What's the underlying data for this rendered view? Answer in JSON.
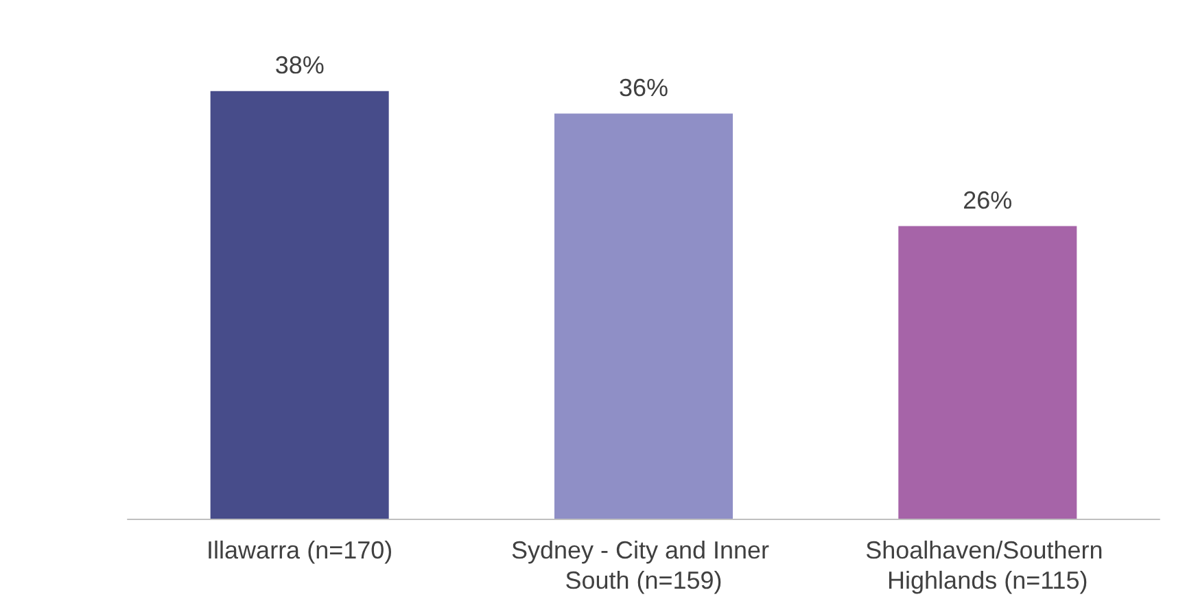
{
  "chart_data": {
    "type": "bar",
    "categories": [
      "Illawarra (n=170)",
      "Sydney - City and Inner South (n=159)",
      "Shoalhaven/Southern Highlands (n=115)"
    ],
    "values": [
      38,
      36,
      26
    ],
    "value_labels": [
      "38%",
      "36%",
      "26%"
    ],
    "colors": [
      "#474c8a",
      "#8f8fc6",
      "#a664a8"
    ]
  }
}
